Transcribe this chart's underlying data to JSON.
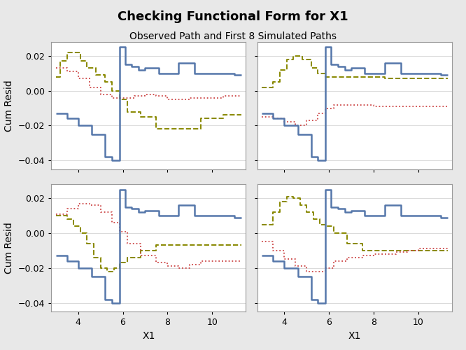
{
  "title": "Checking Functional Form for X1",
  "subtitle": "Observed Path and First 8 Simulated Paths",
  "xlabel": "X1",
  "ylabel": "Cum Resid",
  "xlim": [
    2.8,
    11.5
  ],
  "ylim": [
    -0.045,
    0.028
  ],
  "yticks": [
    -0.04,
    -0.02,
    0.0,
    0.02
  ],
  "xticks": [
    4,
    6,
    8,
    10
  ],
  "bg_color": "#e8e8e8",
  "plot_bg_color": "#ffffff",
  "observed_color": "#5577aa",
  "observed_lw": 1.8,
  "sim1_color": "#cc4444",
  "sim1_ls": "dotted",
  "sim1_lw": 1.3,
  "sim2_color": "#888800",
  "sim2_ls": "dashed",
  "sim2_lw": 1.4,
  "title_fontsize": 13,
  "subtitle_fontsize": 10,
  "obs_x": [
    3.0,
    3.3,
    3.5,
    3.8,
    4.0,
    4.3,
    4.6,
    4.9,
    5.2,
    5.5,
    5.75,
    5.85,
    6.1,
    6.4,
    6.7,
    7.0,
    7.3,
    7.6,
    8.5,
    8.8,
    9.2,
    9.5,
    10.0,
    10.5,
    11.0,
    11.3
  ],
  "obs_y": [
    -0.013,
    -0.013,
    -0.016,
    -0.016,
    -0.02,
    -0.02,
    -0.025,
    -0.025,
    -0.038,
    -0.04,
    -0.04,
    0.025,
    0.015,
    0.014,
    0.012,
    0.013,
    0.013,
    0.01,
    0.016,
    0.016,
    0.01,
    0.01,
    0.01,
    0.01,
    0.009,
    0.009
  ],
  "panels": [
    {
      "sim1_x": [
        3.0,
        3.5,
        4.0,
        4.5,
        5.0,
        5.5,
        5.85,
        6.5,
        7.0,
        7.5,
        8.0,
        8.5,
        9.0,
        9.5,
        10.0,
        10.5,
        11.3
      ],
      "sim1_y": [
        0.013,
        0.011,
        0.007,
        0.002,
        -0.002,
        -0.004,
        -0.004,
        -0.003,
        -0.002,
        -0.003,
        -0.005,
        -0.005,
        -0.004,
        -0.004,
        -0.004,
        -0.003,
        -0.003
      ],
      "sim2_x": [
        3.0,
        3.2,
        3.5,
        3.8,
        4.1,
        4.4,
        4.8,
        5.2,
        5.5,
        5.85,
        6.2,
        6.8,
        7.5,
        8.0,
        8.5,
        9.5,
        10.5,
        11.3
      ],
      "sim2_y": [
        0.008,
        0.017,
        0.022,
        0.022,
        0.017,
        0.013,
        0.009,
        0.005,
        0.0,
        -0.005,
        -0.012,
        -0.015,
        -0.022,
        -0.022,
        -0.022,
        -0.016,
        -0.014,
        -0.014
      ]
    },
    {
      "sim1_x": [
        3.0,
        3.5,
        4.0,
        4.5,
        5.0,
        5.5,
        5.85,
        6.2,
        6.8,
        7.5,
        8.0,
        8.5,
        9.0,
        9.5,
        10.0,
        10.5,
        11.3
      ],
      "sim1_y": [
        -0.015,
        -0.016,
        -0.018,
        -0.02,
        -0.017,
        -0.013,
        -0.01,
        -0.008,
        -0.008,
        -0.008,
        -0.009,
        -0.009,
        -0.009,
        -0.009,
        -0.009,
        -0.009,
        -0.009
      ],
      "sim2_x": [
        3.0,
        3.5,
        3.8,
        4.1,
        4.4,
        4.8,
        5.2,
        5.5,
        5.85,
        6.2,
        6.8,
        7.5,
        8.5,
        9.5,
        10.5,
        11.3
      ],
      "sim2_y": [
        0.002,
        0.005,
        0.012,
        0.018,
        0.02,
        0.018,
        0.013,
        0.01,
        0.008,
        0.008,
        0.008,
        0.008,
        0.007,
        0.007,
        0.007,
        0.007
      ]
    },
    {
      "sim1_x": [
        3.0,
        3.5,
        4.0,
        4.5,
        5.0,
        5.5,
        5.85,
        6.2,
        6.8,
        7.5,
        8.0,
        8.5,
        9.0,
        9.5,
        10.0,
        10.5,
        11.3
      ],
      "sim1_y": [
        0.011,
        0.014,
        0.017,
        0.016,
        0.012,
        0.006,
        0.001,
        -0.006,
        -0.013,
        -0.017,
        -0.019,
        -0.02,
        -0.018,
        -0.016,
        -0.016,
        -0.016,
        -0.016
      ],
      "sim2_x": [
        3.0,
        3.5,
        3.8,
        4.1,
        4.4,
        4.7,
        5.0,
        5.3,
        5.6,
        5.85,
        6.2,
        6.8,
        7.5,
        8.5,
        9.5,
        10.5,
        11.3
      ],
      "sim2_y": [
        0.01,
        0.008,
        0.004,
        0.0,
        -0.006,
        -0.014,
        -0.02,
        -0.022,
        -0.02,
        -0.017,
        -0.014,
        -0.01,
        -0.007,
        -0.007,
        -0.007,
        -0.007,
        -0.007
      ]
    },
    {
      "sim1_x": [
        3.0,
        3.5,
        4.0,
        4.5,
        5.0,
        5.5,
        5.85,
        6.2,
        6.8,
        7.5,
        8.0,
        8.5,
        9.0,
        9.5,
        10.0,
        10.5,
        11.3
      ],
      "sim1_y": [
        -0.005,
        -0.01,
        -0.015,
        -0.019,
        -0.022,
        -0.022,
        -0.02,
        -0.016,
        -0.014,
        -0.013,
        -0.012,
        -0.012,
        -0.011,
        -0.01,
        -0.009,
        -0.009,
        -0.009
      ],
      "sim2_x": [
        3.0,
        3.5,
        3.8,
        4.1,
        4.4,
        4.7,
        5.0,
        5.3,
        5.6,
        5.85,
        6.2,
        6.8,
        7.5,
        8.0,
        9.0,
        10.0,
        11.3
      ],
      "sim2_y": [
        0.005,
        0.012,
        0.018,
        0.021,
        0.02,
        0.016,
        0.012,
        0.008,
        0.005,
        0.004,
        0.0,
        -0.006,
        -0.01,
        -0.01,
        -0.01,
        -0.01,
        -0.01
      ]
    }
  ]
}
